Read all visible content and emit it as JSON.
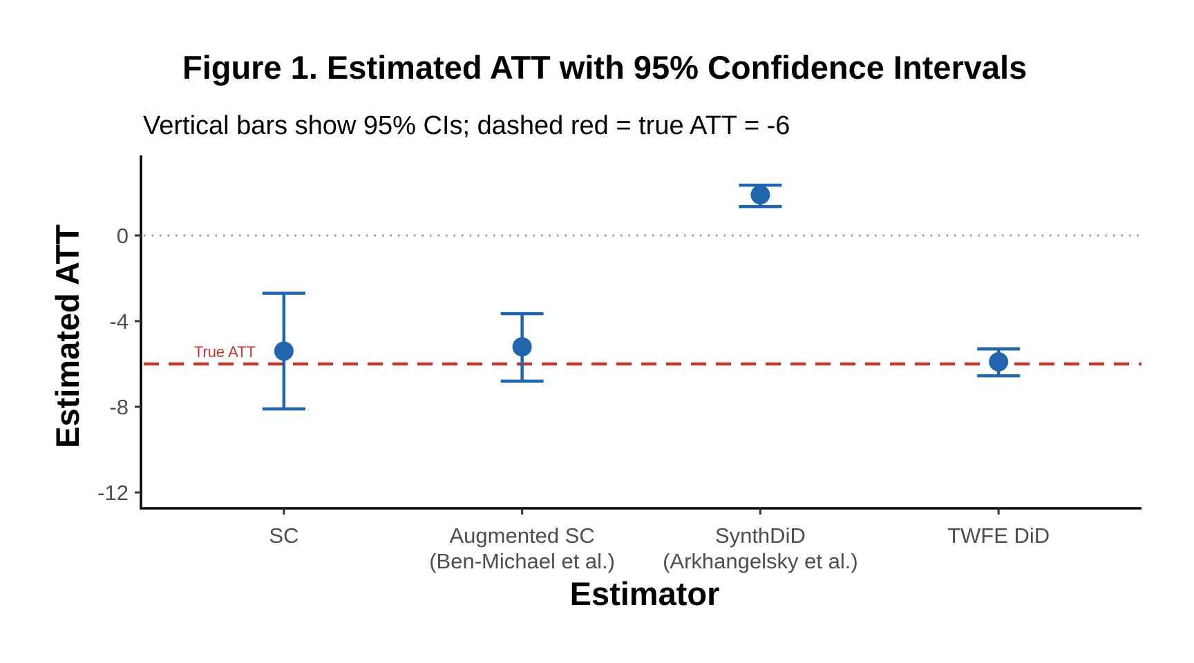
{
  "chart_data": {
    "type": "scatter",
    "subtype": "point-range",
    "title": "Figure 1. Estimated ATT with 95% Confidence Intervals",
    "subtitle": "Vertical bars show 95% CIs; dashed red = true ATT = -6",
    "xlabel": "Estimator",
    "ylabel": "Estimated ATT",
    "categories": [
      [
        "SC"
      ],
      [
        "Augmented SC",
        "(Ben-Michael et al.)"
      ],
      [
        "SynthDiD",
        "(Arkhangelsky et al.)"
      ],
      [
        "TWFE DiD"
      ]
    ],
    "series": [
      {
        "name": "Estimated ATT",
        "color": "#2166AC",
        "estimate": [
          -5.4,
          -5.2,
          1.9,
          -5.9
        ],
        "ci_lower": [
          -8.1,
          -6.8,
          1.35,
          -6.55
        ],
        "ci_upper": [
          -2.7,
          -3.65,
          2.35,
          -5.3
        ]
      }
    ],
    "yticks": [
      0,
      -4,
      -8,
      -12
    ],
    "ytick_labels": [
      "0",
      "-4",
      "-8",
      "-12"
    ],
    "ylim": [
      -12.74,
      3.74
    ],
    "reference_lines": [
      {
        "y": 0,
        "style": "dotted",
        "color": "#999999"
      },
      {
        "y": -6,
        "style": "dashed",
        "color": "#C0392B",
        "label": "True ATT"
      }
    ],
    "grid": false,
    "legend": "none"
  }
}
